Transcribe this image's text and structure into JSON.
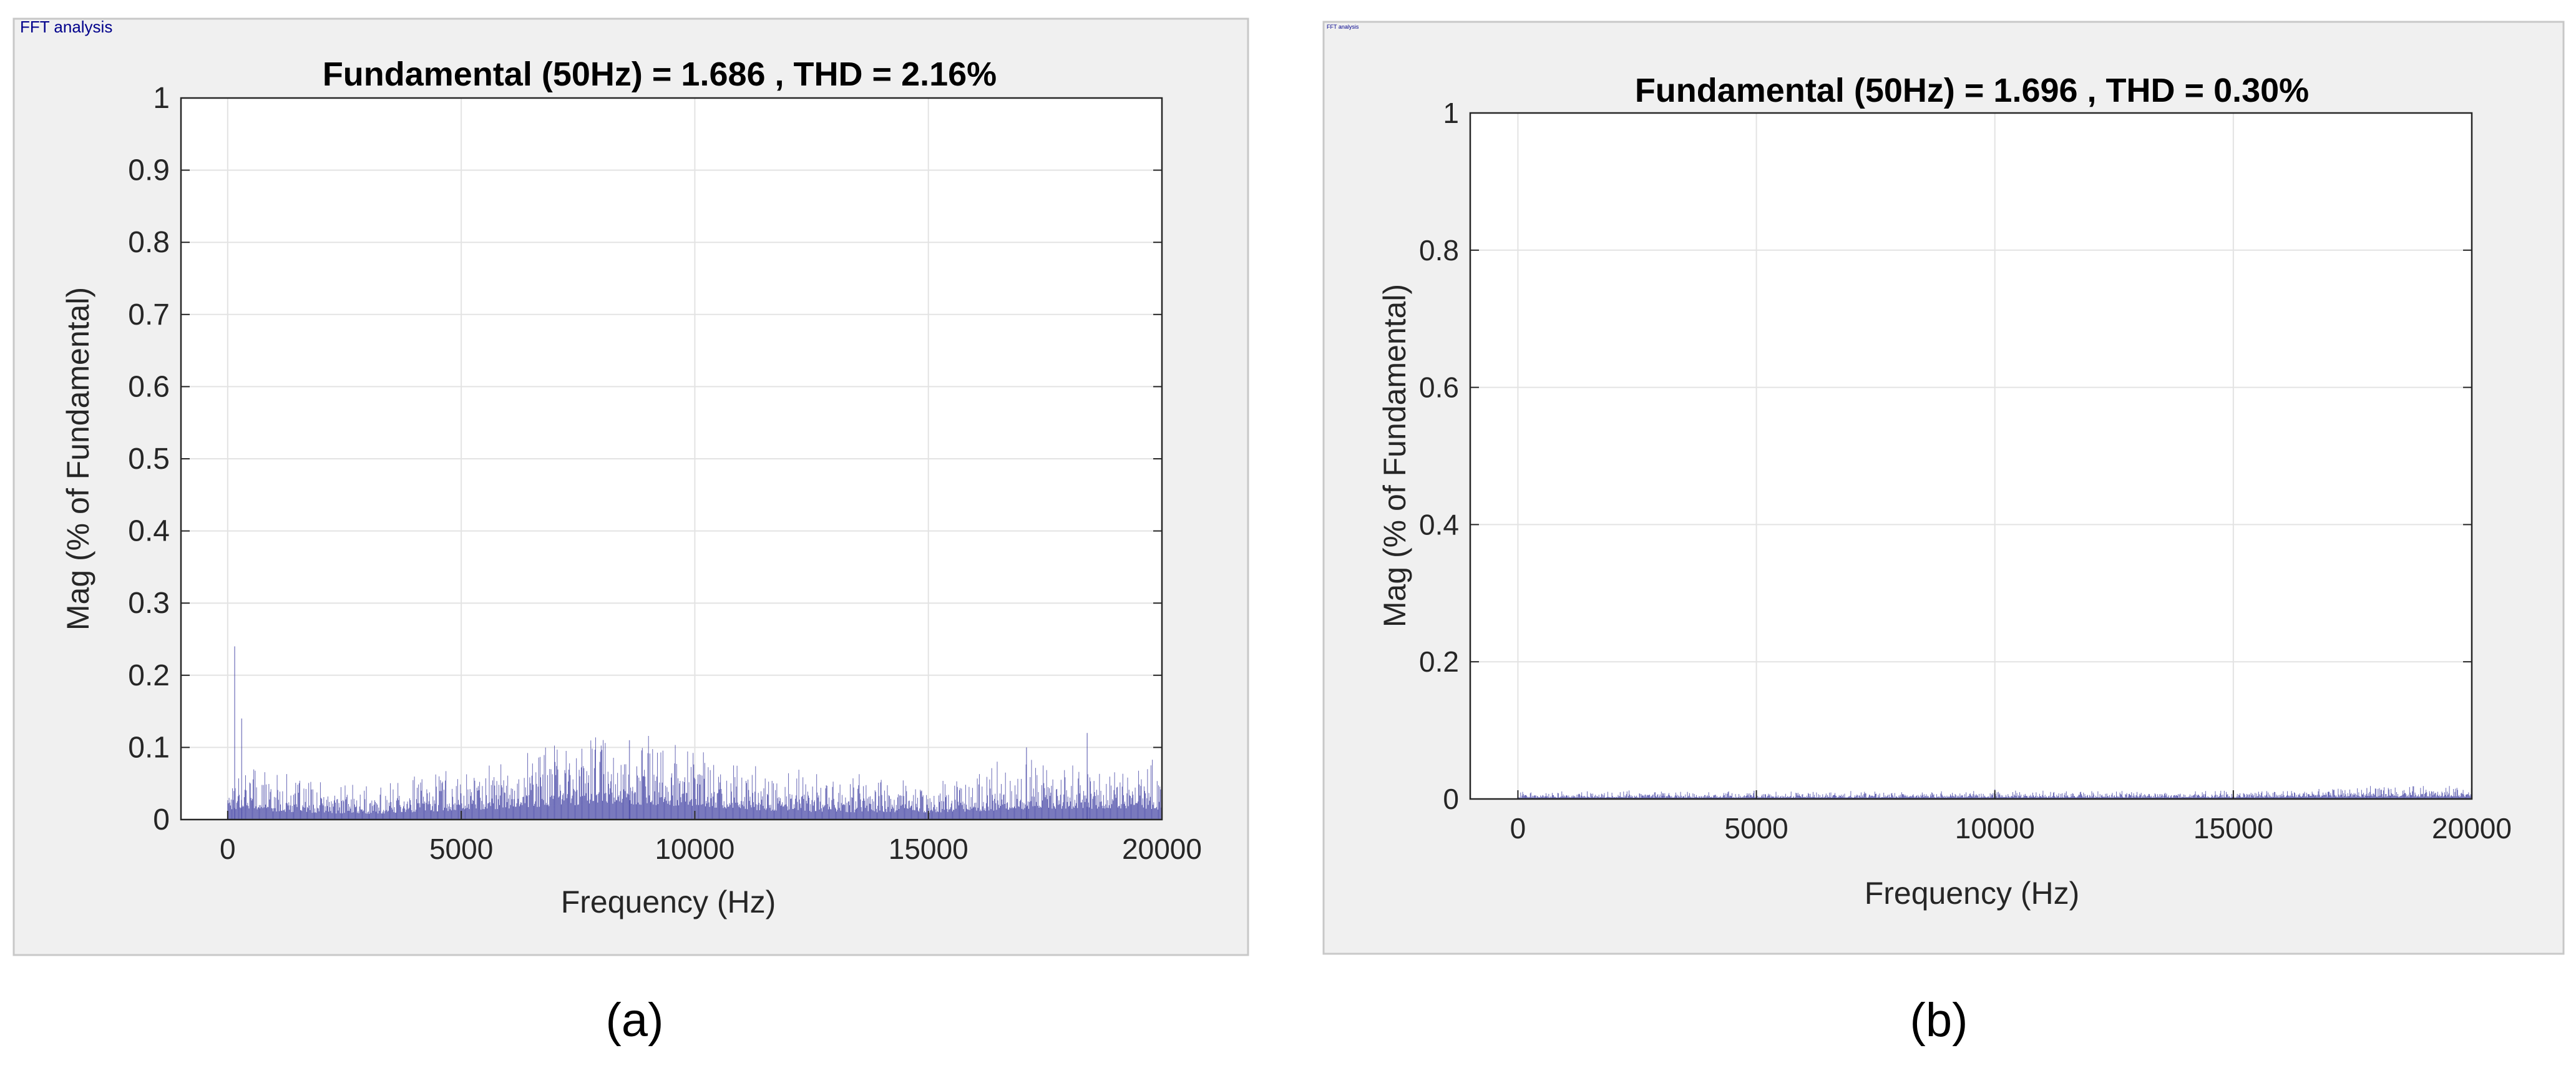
{
  "panels": [
    {
      "group_label": "FFT analysis",
      "caption": "(a)",
      "accent_color": "#00008b",
      "chart_data": {
        "type": "bar",
        "title": "Fundamental (50Hz) = 1.686 , THD = 2.16%",
        "xlabel": "Frequency (Hz)",
        "ylabel": "Mag (% of Fundamental)",
        "xlim": [
          -1000,
          20000
        ],
        "ylim": [
          0,
          1
        ],
        "xticks": [
          0,
          5000,
          10000,
          15000,
          20000
        ],
        "yticks": [
          0,
          0.1,
          0.2,
          0.3,
          0.4,
          0.5,
          0.6,
          0.7,
          0.8,
          0.9,
          1
        ],
        "ytick_labels": [
          "0",
          "0.1",
          "0.2",
          "0.3",
          "0.4",
          "0.5",
          "0.6",
          "0.7",
          "0.8",
          "0.9",
          "1"
        ],
        "grid": true,
        "bar_color": "#3a3aa0",
        "spectrum": {
          "freq_start": 0,
          "freq_end": 20000,
          "envelope": [
            [
              0,
              0.05
            ],
            [
              300,
              0.06
            ],
            [
              1000,
              0.045
            ],
            [
              2000,
              0.035
            ],
            [
              3000,
              0.03
            ],
            [
              4000,
              0.04
            ],
            [
              5000,
              0.05
            ],
            [
              6000,
              0.06
            ],
            [
              7000,
              0.075
            ],
            [
              8000,
              0.085
            ],
            [
              9000,
              0.08
            ],
            [
              10000,
              0.07
            ],
            [
              11000,
              0.055
            ],
            [
              12000,
              0.045
            ],
            [
              13000,
              0.04
            ],
            [
              14000,
              0.04
            ],
            [
              15000,
              0.038
            ],
            [
              16000,
              0.045
            ],
            [
              17000,
              0.055
            ],
            [
              18000,
              0.06
            ],
            [
              19000,
              0.058
            ],
            [
              20000,
              0.055
            ]
          ],
          "peaks": [
            [
              150,
              0.24
            ],
            [
              300,
              0.14
            ],
            [
              8600,
              0.11
            ],
            [
              17100,
              0.1
            ],
            [
              18400,
              0.12
            ]
          ]
        }
      }
    },
    {
      "group_label": "FFT analysis",
      "caption": "(b)",
      "accent_color": "#00008b",
      "chart_data": {
        "type": "bar",
        "title": "Fundamental (50Hz) = 1.696 , THD = 0.30%",
        "xlabel": "Frequency (Hz)",
        "ylabel": "Mag (% of Fundamental)",
        "xlim": [
          -1000,
          20000
        ],
        "ylim": [
          0,
          1
        ],
        "xticks": [
          0,
          5000,
          10000,
          15000,
          20000
        ],
        "yticks": [
          0,
          0.2,
          0.4,
          0.6,
          0.8,
          1
        ],
        "ytick_labels": [
          "0",
          "0.2",
          "0.4",
          "0.6",
          "0.8",
          "1"
        ],
        "grid": true,
        "bar_color": "#3a3aa0",
        "spectrum": {
          "freq_start": 0,
          "freq_end": 20000,
          "envelope": [
            [
              0,
              0.008
            ],
            [
              5000,
              0.007
            ],
            [
              10000,
              0.008
            ],
            [
              15000,
              0.008
            ],
            [
              18000,
              0.012
            ],
            [
              20000,
              0.012
            ]
          ],
          "peaks": [
            [
              4950,
              0.012
            ],
            [
              10000,
              0.014
            ],
            [
              17800,
              0.016
            ]
          ]
        }
      }
    }
  ]
}
